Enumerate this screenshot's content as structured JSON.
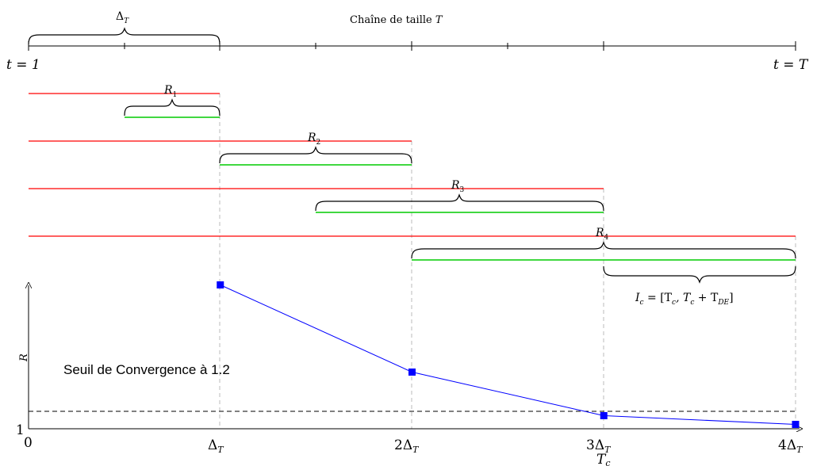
{
  "header": {
    "delta_label": "Δ",
    "delta_sub": "T",
    "chain_label_prefix": "Chaîne de taille ",
    "chain_label_var": "T",
    "start_label": "t = 1",
    "end_label": "t = T"
  },
  "runs": [
    {
      "label": "R",
      "sub": "1"
    },
    {
      "label": "R",
      "sub": "2"
    },
    {
      "label": "R",
      "sub": "3"
    },
    {
      "label": "R",
      "sub": "4"
    }
  ],
  "interval": {
    "prefix": "I",
    "prefix_sub": "c",
    "body": " = [T",
    "body_sub1": "c",
    "middle": ", T",
    "body_sub2": "c",
    "end": " + T",
    "body_sub3": "DE",
    "close": "]"
  },
  "plot": {
    "ylabel": "R",
    "y_tick_bottom": "1",
    "x_tick_zero": "0",
    "threshold_label": "Seuil de Convergence à 1.2",
    "threshold_value": 1.2,
    "x_ticks": [
      {
        "coef": "",
        "sym": "Δ",
        "sub": "T"
      },
      {
        "coef": "2",
        "sym": "Δ",
        "sub": "T"
      },
      {
        "coef": "3",
        "sym": "Δ",
        "sub": "T"
      },
      {
        "coef": "4",
        "sym": "Δ",
        "sub": "T"
      }
    ],
    "tc_label": "T",
    "tc_sub": "c"
  },
  "chart_data": {
    "type": "line",
    "x": [
      1,
      2,
      3,
      4
    ],
    "x_unit": "Δ_T",
    "values": [
      2.65,
      1.65,
      1.15,
      1.05
    ],
    "ylim": [
      1,
      3
    ],
    "threshold": 1.2,
    "series_color": "#0000ff",
    "marker": "square"
  },
  "colors": {
    "red_line": "#ff0000",
    "green_line": "#00cc00",
    "blue_series": "#0000ff",
    "dash_grid": "#bbbbbb"
  }
}
